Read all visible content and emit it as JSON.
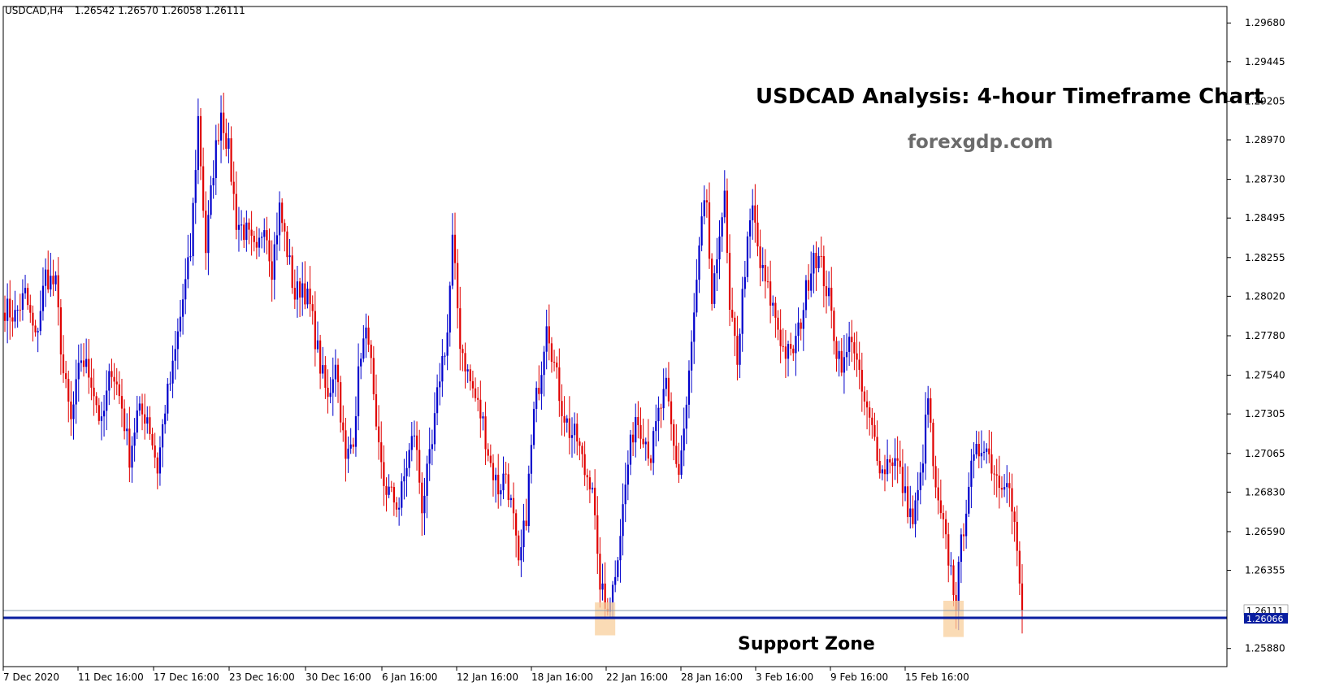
{
  "header": {
    "symbol": "USDCAD,H4",
    "ohlc": "1.26542 1.26570 1.26058 1.26111"
  },
  "annotations": {
    "title": "USDCAD Analysis: 4-hour Timeframe Chart",
    "site": "forexgdp.com",
    "support_label": "Support Zone"
  },
  "colors": {
    "bull": "#0000cc",
    "bear": "#e00000",
    "support_line": "#0a1ea0",
    "highlight": "#f8cf9c",
    "current_label_bg": "#ffffff",
    "support_label_bg": "#0a1ea0",
    "axis": "#000000"
  },
  "chart_data": {
    "type": "candlestick",
    "ylim": [
      1.2577,
      1.2978
    ],
    "y_ticks": [
      "1.29680",
      "1.29445",
      "1.29205",
      "1.28970",
      "1.28730",
      "1.28495",
      "1.28255",
      "1.28020",
      "1.27780",
      "1.27540",
      "1.27305",
      "1.27065",
      "1.26830",
      "1.26590",
      "1.26355",
      "1.25880"
    ],
    "x_ticks": [
      "7 Dec 2020",
      "11 Dec 16:00",
      "17 Dec 16:00",
      "23 Dec 16:00",
      "30 Dec 16:00",
      "6 Jan 16:00",
      "12 Jan 16:00",
      "18 Jan 16:00",
      "22 Jan 16:00",
      "28 Jan 16:00",
      "3 Feb 16:00",
      "9 Feb 16:00",
      "15 Feb 16:00"
    ],
    "current_price": "1.26111",
    "support_price": "1.26066",
    "highlight_zones": [
      {
        "from_candle": 232,
        "to_candle": 240,
        "low": 1.2596,
        "high": 1.2616
      },
      {
        "from_candle": 369,
        "to_candle": 377,
        "low": 1.2595,
        "high": 1.2617
      }
    ],
    "anchors": [
      [
        0,
        1.2795
      ],
      [
        4,
        1.279
      ],
      [
        8,
        1.2803
      ],
      [
        12,
        1.2775
      ],
      [
        16,
        1.2815
      ],
      [
        20,
        1.2808
      ],
      [
        23,
        1.2755
      ],
      [
        26,
        1.2725
      ],
      [
        30,
        1.2765
      ],
      [
        34,
        1.2752
      ],
      [
        38,
        1.2722
      ],
      [
        42,
        1.276
      ],
      [
        46,
        1.2735
      ],
      [
        49,
        1.2705
      ],
      [
        52,
        1.273
      ],
      [
        56,
        1.273
      ],
      [
        60,
        1.2697
      ],
      [
        63,
        1.2735
      ],
      [
        66,
        1.2757
      ],
      [
        70,
        1.28
      ],
      [
        73,
        1.2828
      ],
      [
        76,
        1.291
      ],
      [
        79,
        1.283
      ],
      [
        82,
        1.288
      ],
      [
        85,
        1.2915
      ],
      [
        88,
        1.289
      ],
      [
        91,
        1.2848
      ],
      [
        95,
        1.284
      ],
      [
        99,
        1.2825
      ],
      [
        102,
        1.285
      ],
      [
        105,
        1.282
      ],
      [
        108,
        1.2855
      ],
      [
        111,
        1.283
      ],
      [
        114,
        1.2802
      ],
      [
        117,
        1.281
      ],
      [
        120,
        1.2795
      ],
      [
        124,
        1.276
      ],
      [
        127,
        1.2738
      ],
      [
        130,
        1.2765
      ],
      [
        134,
        1.27
      ],
      [
        137,
        1.2718
      ],
      [
        140,
        1.277
      ],
      [
        143,
        1.278
      ],
      [
        146,
        1.2715
      ],
      [
        149,
        1.2688
      ],
      [
        152,
        1.268
      ],
      [
        155,
        1.2675
      ],
      [
        158,
        1.27
      ],
      [
        161,
        1.272
      ],
      [
        164,
        1.2675
      ],
      [
        168,
        1.271
      ],
      [
        171,
        1.2755
      ],
      [
        174,
        1.278
      ],
      [
        176,
        1.2835
      ],
      [
        179,
        1.2775
      ],
      [
        182,
        1.2755
      ],
      [
        185,
        1.274
      ],
      [
        188,
        1.2725
      ],
      [
        191,
        1.27
      ],
      [
        194,
        1.2685
      ],
      [
        197,
        1.2695
      ],
      [
        200,
        1.2665
      ],
      [
        202,
        1.2635
      ],
      [
        205,
        1.267
      ],
      [
        208,
        1.273
      ],
      [
        211,
        1.276
      ],
      [
        213,
        1.279
      ],
      [
        216,
        1.276
      ],
      [
        219,
        1.2735
      ],
      [
        222,
        1.272
      ],
      [
        225,
        1.2715
      ],
      [
        228,
        1.2695
      ],
      [
        231,
        1.269
      ],
      [
        233,
        1.2638
      ],
      [
        236,
        1.2612
      ],
      [
        239,
        1.2625
      ],
      [
        242,
        1.266
      ],
      [
        245,
        1.27
      ],
      [
        248,
        1.273
      ],
      [
        251,
        1.272
      ],
      [
        254,
        1.2705
      ],
      [
        257,
        1.273
      ],
      [
        260,
        1.2745
      ],
      [
        263,
        1.271
      ],
      [
        265,
        1.2695
      ],
      [
        268,
        1.2735
      ],
      [
        271,
        1.279
      ],
      [
        274,
        1.2845
      ],
      [
        276,
        1.286
      ],
      [
        278,
        1.279
      ],
      [
        281,
        1.2845
      ],
      [
        283,
        1.286
      ],
      [
        285,
        1.279
      ],
      [
        288,
        1.2765
      ],
      [
        291,
        1.282
      ],
      [
        294,
        1.2855
      ],
      [
        297,
        1.282
      ],
      [
        300,
        1.2805
      ],
      [
        303,
        1.279
      ],
      [
        306,
        1.277
      ],
      [
        309,
        1.2765
      ],
      [
        312,
        1.278
      ],
      [
        315,
        1.2805
      ],
      [
        318,
        1.283
      ],
      [
        321,
        1.282
      ],
      [
        324,
        1.28
      ],
      [
        327,
        1.277
      ],
      [
        330,
        1.276
      ],
      [
        333,
        1.278
      ],
      [
        336,
        1.275
      ],
      [
        339,
        1.273
      ],
      [
        342,
        1.2715
      ],
      [
        345,
        1.2695
      ],
      [
        348,
        1.2705
      ],
      [
        351,
        1.27
      ],
      [
        354,
        1.268
      ],
      [
        357,
        1.2665
      ],
      [
        360,
        1.269
      ],
      [
        363,
        1.274
      ],
      [
        366,
        1.268
      ],
      [
        369,
        1.266
      ],
      [
        372,
        1.2635
      ],
      [
        374,
        1.2617
      ],
      [
        376,
        1.265
      ],
      [
        379,
        1.269
      ],
      [
        382,
        1.2705
      ],
      [
        385,
        1.2715
      ],
      [
        388,
        1.27
      ],
      [
        391,
        1.269
      ],
      [
        394,
        1.2695
      ],
      [
        397,
        1.266
      ],
      [
        400,
        1.2611
      ]
    ]
  }
}
